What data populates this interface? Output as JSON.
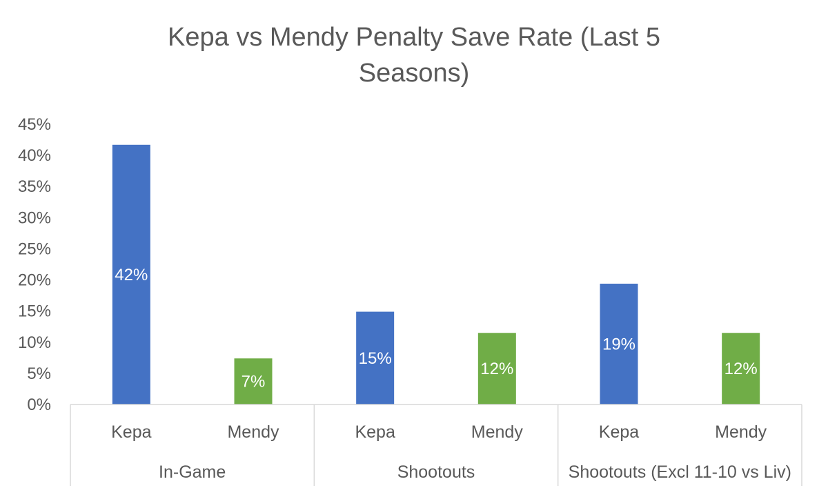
{
  "chart_data": {
    "type": "bar",
    "title_lines": [
      "Kepa vs Mendy Penalty Save Rate (Last 5",
      "Seasons)"
    ],
    "xlabel": "",
    "ylabel": "",
    "ylim": [
      0,
      45
    ],
    "y_ticks": [
      0,
      5,
      10,
      15,
      20,
      25,
      30,
      35,
      40,
      45
    ],
    "y_tick_labels": [
      "0%",
      "5%",
      "10%",
      "15%",
      "20%",
      "25%",
      "30%",
      "35%",
      "40%",
      "45%"
    ],
    "grid": false,
    "legend": "none",
    "groups": [
      {
        "label": "In-Game",
        "bars": [
          {
            "category": "Kepa",
            "value": 41.7,
            "label": "42%",
            "color": "#4472C4"
          },
          {
            "category": "Mendy",
            "value": 7.4,
            "label": "7%",
            "color": "#70AD47"
          }
        ]
      },
      {
        "label": "Shootouts",
        "bars": [
          {
            "category": "Kepa",
            "value": 14.9,
            "label": "15%",
            "color": "#4472C4"
          },
          {
            "category": "Mendy",
            "value": 11.5,
            "label": "12%",
            "color": "#70AD47"
          }
        ]
      },
      {
        "label": "Shootouts (Excl 11-10 vs Liv)",
        "bars": [
          {
            "category": "Kepa",
            "value": 19.4,
            "label": "19%",
            "color": "#4472C4"
          },
          {
            "category": "Mendy",
            "value": 11.5,
            "label": "12%",
            "color": "#70AD47"
          }
        ]
      }
    ]
  }
}
